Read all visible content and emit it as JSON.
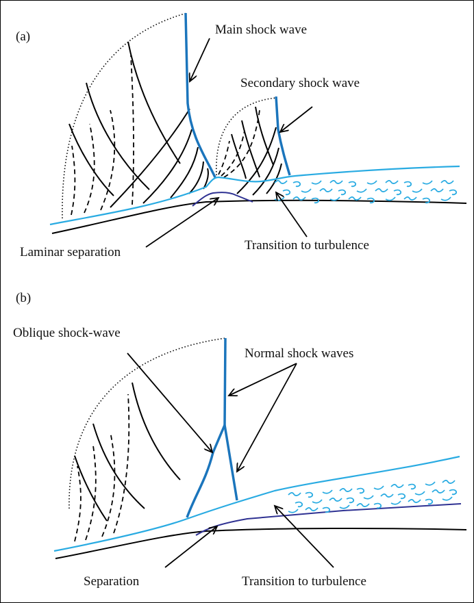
{
  "panel_a": {
    "tag": "(a)",
    "labels": {
      "main_shock": "Main shock wave",
      "secondary_shock": "Secondary shock wave",
      "laminar_separation": "Laminar separation",
      "transition": "Transition to turbulence"
    }
  },
  "panel_b": {
    "tag": "(b)",
    "labels": {
      "oblique_shock": "Oblique shock-wave",
      "normal_shocks": "Normal shock waves",
      "separation": "Separation",
      "transition": "Transition to turbulence"
    }
  },
  "colors": {
    "boundary_layer": "#29abe2",
    "shock_wave": "#1b75bc",
    "separation_bubble": "#2e3192",
    "wall": "#000000"
  }
}
